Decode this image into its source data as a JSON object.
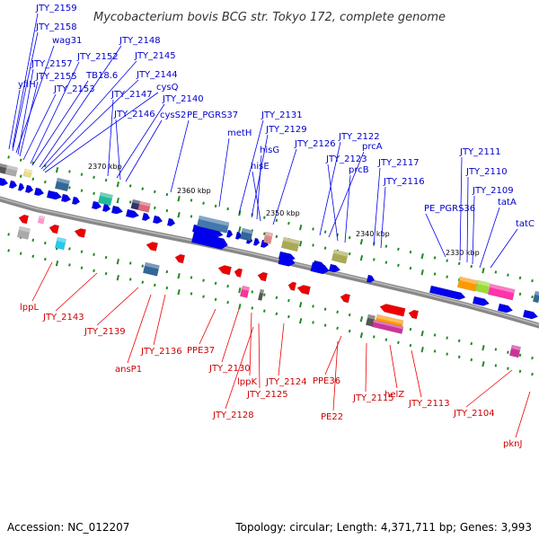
{
  "title": "Mycobacterium bovis BCG str. Tokyo 172, complete genome",
  "accession": "Accession: NC_012207",
  "topology": "Topology: circular; Length: 4,371,711 bp; Genes: 3,993",
  "colors": {
    "forward": "#0000ee",
    "reverse": "#ee0000",
    "forward_label": "#0000cc",
    "reverse_label": "#cc0000",
    "backbone": "#888888",
    "tick": "#228b22"
  },
  "scale_marks": [
    "2370 kbp",
    "2360 kbp",
    "2350 kbp",
    "2340 kbp",
    "2330 kbp"
  ],
  "forward_labels": [
    "JTY_2159",
    "JTY_2158",
    "wag31",
    "JTY_2157",
    "JTY_2155",
    "yfiH",
    "JTY_2153",
    "JTY_2152",
    "TB18.6",
    "JTY_2148",
    "JTY_2145",
    "JTY_2144",
    "cysQ",
    "JTY_2147",
    "JTY_2140",
    "JTY_2146",
    "cysS2",
    "PE_PGRS37",
    "metH",
    "JTY_2131",
    "JTY_2129",
    "hisG",
    "hisE",
    "JTY_2126",
    "JTY_2122",
    "prcA",
    "JTY_2123",
    "prcB",
    "JTY_2117",
    "JTY_2116",
    "JTY_2111",
    "JTY_2110",
    "JTY_2109",
    "PE_PGRS36",
    "tatA",
    "tatC"
  ],
  "reverse_labels": [
    "lppL",
    "JTY_2143",
    "JTY_2139",
    "ansP1",
    "JTY_2136",
    "PPE37",
    "JTY_2130",
    "lppK",
    "JTY_2124",
    "JTY_2125",
    "JTY_2128",
    "PPE36",
    "JTY_2115",
    "PE22",
    "helZ",
    "JTY_2113",
    "JTY_2104",
    "pknJ"
  ]
}
